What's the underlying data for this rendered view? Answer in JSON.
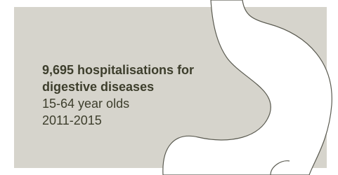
{
  "headline": "9,695 hospitalisations for digestive diseases",
  "age_group": "15-64 year olds",
  "period": "2011-2015"
}
